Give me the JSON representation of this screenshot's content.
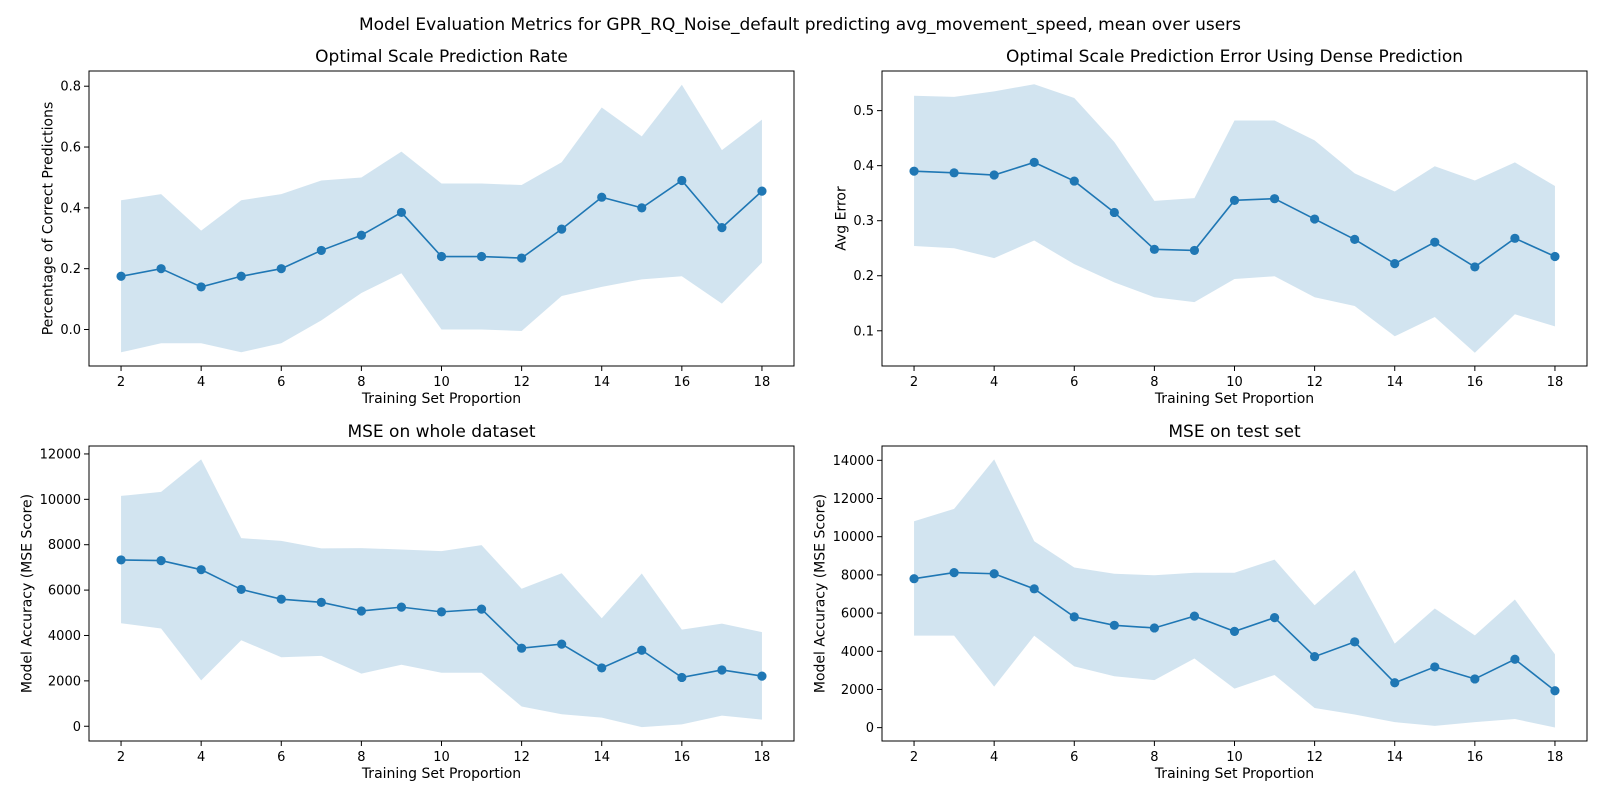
{
  "figure": {
    "title": "Model Evaluation Metrics for GPR_RQ_Noise_default predicting avg_movement_speed, mean over users",
    "line_color": "#1f77b4",
    "band_color": "#1f77b4",
    "band_opacity": 0.2
  },
  "chart_data": [
    {
      "type": "line",
      "title": "Optimal Scale Prediction Rate",
      "xlabel": "Training Set Proportion",
      "ylabel": "Percentage of Correct Predictions",
      "x": [
        2,
        3,
        4,
        5,
        6,
        7,
        8,
        9,
        10,
        11,
        12,
        13,
        14,
        15,
        16,
        17,
        18
      ],
      "y": [
        0.175,
        0.2,
        0.14,
        0.175,
        0.2,
        0.26,
        0.31,
        0.385,
        0.24,
        0.24,
        0.235,
        0.33,
        0.435,
        0.4,
        0.49,
        0.335,
        0.455
      ],
      "upper": [
        0.425,
        0.445,
        0.325,
        0.425,
        0.445,
        0.49,
        0.5,
        0.585,
        0.48,
        0.48,
        0.475,
        0.55,
        0.73,
        0.635,
        0.805,
        0.59,
        0.69
      ],
      "lower": [
        -0.075,
        -0.045,
        -0.045,
        -0.075,
        -0.045,
        0.03,
        0.12,
        0.185,
        0.0,
        0.0,
        -0.005,
        0.11,
        0.14,
        0.165,
        0.175,
        0.085,
        0.22
      ],
      "xlim": [
        1.2,
        18.8
      ],
      "ylim": [
        -0.12,
        0.85
      ],
      "xticks": [
        2,
        4,
        6,
        8,
        10,
        12,
        14,
        16,
        18
      ],
      "yticks": [
        0.0,
        0.2,
        0.4,
        0.6,
        0.8
      ],
      "ytick_decimals": 1
    },
    {
      "type": "line",
      "title": "Optimal Scale Prediction Error Using Dense Prediction",
      "xlabel": "Training Set Proportion",
      "ylabel": "Avg Error",
      "x": [
        2,
        3,
        4,
        5,
        6,
        7,
        8,
        9,
        10,
        11,
        12,
        13,
        14,
        15,
        16,
        17,
        18
      ],
      "y": [
        0.39,
        0.387,
        0.383,
        0.406,
        0.372,
        0.315,
        0.248,
        0.246,
        0.337,
        0.34,
        0.303,
        0.266,
        0.222,
        0.261,
        0.216,
        0.268,
        0.235
      ],
      "upper": [
        0.527,
        0.525,
        0.535,
        0.548,
        0.523,
        0.443,
        0.336,
        0.341,
        0.482,
        0.482,
        0.446,
        0.386,
        0.353,
        0.399,
        0.373,
        0.406,
        0.363
      ],
      "lower": [
        0.254,
        0.25,
        0.232,
        0.264,
        0.221,
        0.188,
        0.161,
        0.152,
        0.194,
        0.199,
        0.161,
        0.145,
        0.09,
        0.125,
        0.06,
        0.13,
        0.108
      ],
      "xlim": [
        1.2,
        18.8
      ],
      "ylim": [
        0.036,
        0.572
      ],
      "xticks": [
        2,
        4,
        6,
        8,
        10,
        12,
        14,
        16,
        18
      ],
      "yticks": [
        0.1,
        0.2,
        0.3,
        0.4,
        0.5
      ],
      "ytick_decimals": 1
    },
    {
      "type": "line",
      "title": "MSE on whole dataset",
      "xlabel": "Training Set Proportion",
      "ylabel": "Model Accuracy (MSE Score)",
      "x": [
        2,
        3,
        4,
        5,
        6,
        7,
        8,
        9,
        10,
        11,
        12,
        13,
        14,
        15,
        16,
        17,
        18
      ],
      "y": [
        7330,
        7300,
        6900,
        6030,
        5600,
        5460,
        5080,
        5250,
        5040,
        5160,
        3440,
        3620,
        2570,
        3350,
        2150,
        2480,
        2210
      ],
      "upper": [
        10150,
        10330,
        11760,
        8290,
        8170,
        7840,
        7850,
        7790,
        7720,
        7980,
        6060,
        6740,
        4760,
        6730,
        4260,
        4520,
        4150
      ],
      "lower": [
        4540,
        4310,
        2020,
        3790,
        3040,
        3100,
        2320,
        2710,
        2360,
        2360,
        870,
        530,
        380,
        -40,
        80,
        470,
        290
      ],
      "xlim": [
        1.2,
        18.8
      ],
      "ylim": [
        -650,
        12350
      ],
      "xticks": [
        2,
        4,
        6,
        8,
        10,
        12,
        14,
        16,
        18
      ],
      "yticks": [
        0,
        2000,
        4000,
        6000,
        8000,
        10000,
        12000
      ],
      "ytick_decimals": 0
    },
    {
      "type": "line",
      "title": "MSE on test set",
      "xlabel": "Training Set Proportion",
      "ylabel": "Model Accuracy (MSE Score)",
      "x": [
        2,
        3,
        4,
        5,
        6,
        7,
        8,
        9,
        10,
        11,
        12,
        13,
        14,
        15,
        16,
        17,
        18
      ],
      "y": [
        7800,
        8120,
        8060,
        7270,
        5800,
        5360,
        5220,
        5840,
        5040,
        5760,
        3720,
        4490,
        2350,
        3180,
        2550,
        3580,
        1930
      ],
      "upper": [
        10810,
        11460,
        14050,
        9760,
        8390,
        8060,
        7980,
        8110,
        8110,
        8800,
        6410,
        8250,
        4400,
        6240,
        4830,
        6710,
        3840
      ],
      "lower": [
        4820,
        4820,
        2150,
        4810,
        3210,
        2690,
        2490,
        3620,
        2040,
        2760,
        1030,
        690,
        290,
        90,
        290,
        450,
        10
      ],
      "xlim": [
        1.2,
        18.8
      ],
      "ylim": [
        -700,
        14750
      ],
      "xticks": [
        2,
        4,
        6,
        8,
        10,
        12,
        14,
        16,
        18
      ],
      "yticks": [
        0,
        2000,
        4000,
        6000,
        8000,
        10000,
        12000,
        14000
      ],
      "ytick_decimals": 0
    }
  ]
}
